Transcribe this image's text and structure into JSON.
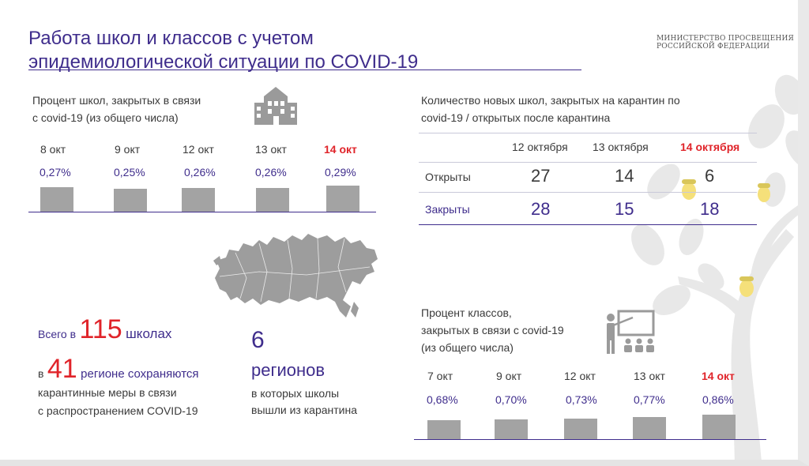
{
  "title_line1": "Работа школ и классов с учетом",
  "title_line2": "эпидемиологической ситуации по COVID-19",
  "ministry_line1": "МИНИСТЕРСТВО ПРОСВЕЩЕНИЯ",
  "ministry_line2": "РОССИЙСКОЙ ФЕДЕРАЦИИ",
  "colors": {
    "purple": "#3f2d8c",
    "red": "#e0242a",
    "bar": "#a3a3a3"
  },
  "icons": [
    "school-building-icon",
    "russia-map-icon",
    "teacher-board-icon",
    "oak-tree-icon",
    "acorn-icon"
  ],
  "chart_data": [
    {
      "type": "bar",
      "title_line1": "Процент школ, закрытых в связи",
      "title_line2": "с covid-19 (из общего числа)",
      "categories": [
        "8 окт",
        "9 окт",
        "12 окт",
        "13 окт",
        "14 окт"
      ],
      "labels": [
        "0,27%",
        "0,25%",
        "0,26%",
        "0,26%",
        "0,29%"
      ],
      "values": [
        0.27,
        0.25,
        0.26,
        0.26,
        0.29
      ],
      "highlight_index": 4
    },
    {
      "type": "table",
      "title_line1": "Количество новых школ, закрытых на карантин по",
      "title_line2": "covid-19 / открытых после карантина",
      "columns": [
        "12 октября",
        "13 октября",
        "14 октября"
      ],
      "rows": [
        {
          "label": "Открыты",
          "values": [
            "27",
            "14",
            "6"
          ]
        },
        {
          "label": "Закрыты",
          "values": [
            "28",
            "15",
            "18"
          ]
        }
      ],
      "highlight_column": 2
    },
    {
      "type": "bar",
      "title_line1": "Процент классов,",
      "title_line2": "закрытых в связи с covid-19",
      "title_line3": "(из общего числа)",
      "categories": [
        "7 окт",
        "9 окт",
        "12 окт",
        "13 окт",
        "14 окт"
      ],
      "labels": [
        "0,68%",
        "0,70%",
        "0,73%",
        "0,77%",
        "0,86%"
      ],
      "values": [
        0.68,
        0.7,
        0.73,
        0.77,
        0.86
      ],
      "highlight_index": 4
    }
  ],
  "stats": {
    "schools_prefix": "Всего в",
    "schools_number": "115",
    "schools_suffix": "школах",
    "regions_prefix": "в",
    "regions_number": "41",
    "regions_suffix": "регионе сохраняются",
    "regions_line2": "карантинные меры в связи",
    "regions_line3": "с распространением COVID-19",
    "released_number": "6",
    "released_word": "регионов",
    "released_line1": "в которых школы",
    "released_line2": "вышли из карантина"
  }
}
